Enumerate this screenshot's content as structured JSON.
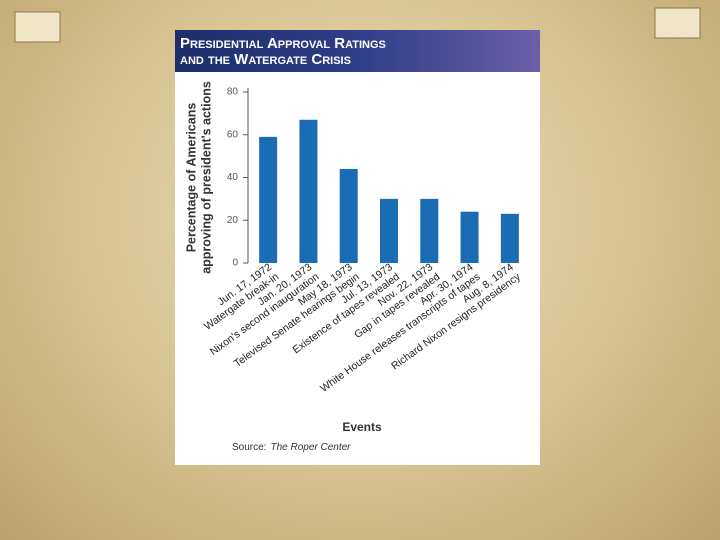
{
  "chart_data": {
    "type": "bar",
    "title": [
      "Presidential Approval Ratings",
      "and the Watergate Crisis"
    ],
    "ylabel": [
      "Percentage of Americans",
      "approving of president's actions"
    ],
    "xlabel": "Events",
    "source_label": "Source:",
    "source": "The Roper Center",
    "categories": [
      "Jun. 17, 1972",
      "Jan. 20, 1973",
      "May 18, 1973",
      "Jul. 13, 1973",
      "Nov. 22, 1973",
      "Apr. 30, 1974",
      "Aug. 8, 1974"
    ],
    "events": [
      "Watergate break-in",
      "Nixon's second inauguration",
      "Televised Senate hearings begin",
      "Existence of tapes revealed",
      "Gap in tapes revealed",
      "White House releases transcripts of tapes",
      "Richard Nixon resigns presidency"
    ],
    "values": [
      59,
      67,
      44,
      30,
      30,
      24,
      23
    ],
    "color": "#1a6db5",
    "ylim": [
      0,
      80
    ],
    "yticks": [
      0,
      20,
      40,
      60,
      80
    ]
  }
}
